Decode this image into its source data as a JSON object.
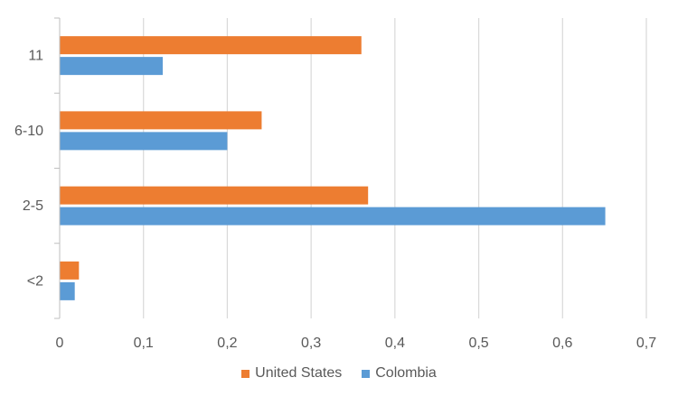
{
  "chart_data": {
    "type": "bar",
    "orientation": "horizontal",
    "categories": [
      "<2",
      "2-5",
      "6-10",
      "11"
    ],
    "series": [
      {
        "name": "United States",
        "color": "#ED7D31",
        "values": [
          0.023,
          0.368,
          0.241,
          0.36
        ]
      },
      {
        "name": "Colombia",
        "color": "#5B9BD5",
        "values": [
          0.018,
          0.651,
          0.2,
          0.123
        ]
      }
    ],
    "xlim": [
      0,
      0.7
    ],
    "xticks": [
      "0",
      "0,1",
      "0,2",
      "0,3",
      "0,4",
      "0,5",
      "0,6",
      "0,7"
    ],
    "grid": true,
    "legend_position": "bottom"
  }
}
